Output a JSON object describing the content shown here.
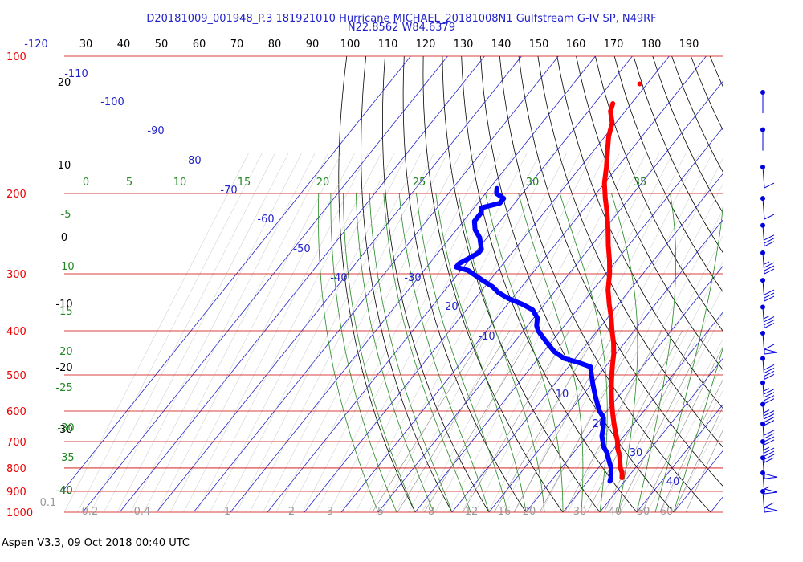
{
  "header": {
    "line1": "D20181009_001948_P.3 181921010 Hurricane MICHAEL_20181008N1 Gulfstream G-IV SP, N49RF",
    "line2": "N22.8562 W84.6379"
  },
  "footer": "Aspen V3.3, 09 Oct 2018  00:40 UTC",
  "chart_data": {
    "type": "line",
    "subtype": "skew-t log-p sounding",
    "title": "D20181009_001948_P.3 181921010 Hurricane MICHAEL_20181008N1 Gulfstream G-IV SP, N49RF",
    "subtitle": "N22.8562 W84.6379",
    "pressure_levels": [
      "100",
      "200",
      "300",
      "400",
      "500",
      "600",
      "700",
      "800",
      "900",
      "1000"
    ],
    "top_ticks": [
      "-120",
      "30",
      "40",
      "50",
      "60",
      "70",
      "80",
      "90",
      "100",
      "110",
      "120",
      "130",
      "140",
      "150",
      "160",
      "170",
      "180",
      "190"
    ],
    "isotherm_labels": [
      "-110",
      "-100",
      "-90",
      "-80",
      "-70",
      "-60",
      "-50",
      "-40",
      "-30",
      "-20",
      "-10",
      "10",
      "20",
      "30",
      "40"
    ],
    "left_scale_labels": [
      "20",
      "10",
      "0",
      "-10",
      "-20",
      "-30",
      "-40"
    ],
    "theta_e_labels": [
      "0",
      "5",
      "10",
      "15",
      "20",
      "25",
      "30",
      "35"
    ],
    "theta_e_left_labels": [
      "-5",
      "-10",
      "-15",
      "-20",
      "-25",
      "-30",
      "-35",
      "-40"
    ],
    "mixing_ratio_labels": [
      "0.1",
      "0.2",
      "0.4",
      "1",
      "2",
      "3",
      "5",
      "8",
      "12",
      "16",
      "20",
      "30",
      "40",
      "50",
      "60"
    ],
    "series": [
      {
        "color": "#ff0000",
        "p": [
          127,
          132,
          140,
          150,
          160,
          175,
          190,
          205,
          220,
          240,
          260,
          280,
          300,
          325,
          350,
          375,
          400,
          425,
          450,
          475,
          500,
          525,
          550,
          575,
          600,
          625,
          650,
          675,
          700,
          725,
          750,
          775,
          800,
          820,
          840
        ],
        "t": [
          -65,
          -64,
          -61,
          -59,
          -56.5,
          -53,
          -50,
          -46.5,
          -43,
          -39,
          -35.5,
          -32,
          -29,
          -26,
          -22.5,
          -19,
          -16,
          -13,
          -10.5,
          -8.5,
          -6.5,
          -4.5,
          -2.5,
          -0.5,
          1.5,
          3.5,
          5.5,
          7.5,
          9.5,
          11,
          13,
          14.5,
          16,
          17.5,
          18.5
        ]
      },
      {
        "color": "#0000ff",
        "p": [
          195,
          200,
          205,
          210,
          215,
          220,
          230,
          240,
          250,
          260,
          265,
          270,
          275,
          280,
          285,
          290,
          295,
          300,
          310,
          320,
          330,
          340,
          350,
          360,
          375,
          390,
          400,
          415,
          430,
          445,
          460,
          470,
          480,
          500,
          520,
          540,
          560,
          580,
          600,
          620,
          650,
          680,
          700,
          720,
          740,
          760,
          780,
          800,
          820,
          840,
          855
        ],
        "t": [
          -78,
          -77,
          -74,
          -74,
          -78,
          -77,
          -77,
          -75,
          -72,
          -70,
          -69,
          -69,
          -70,
          -71,
          -72,
          -72,
          -68,
          -66,
          -62,
          -58,
          -55,
          -51,
          -46,
          -42,
          -39,
          -37.5,
          -36,
          -33,
          -30,
          -27,
          -23,
          -18,
          -14,
          -12,
          -10,
          -8,
          -6,
          -4,
          -2,
          0.5,
          2.5,
          4,
          5.5,
          7,
          9,
          10.5,
          12,
          13.5,
          14.5,
          15.5,
          16
        ]
      }
    ],
    "wind_barbs": [
      {
        "p": 120,
        "speed_kt": 0
      },
      {
        "p": 145,
        "speed_kt": 0
      },
      {
        "p": 175,
        "speed_kt": 10
      },
      {
        "p": 205,
        "speed_kt": 10
      },
      {
        "p": 235,
        "speed_kt": 30
      },
      {
        "p": 270,
        "speed_kt": 35
      },
      {
        "p": 310,
        "speed_kt": 30
      },
      {
        "p": 355,
        "speed_kt": 35
      },
      {
        "p": 405,
        "speed_kt": 60
      },
      {
        "p": 460,
        "speed_kt": 40
      },
      {
        "p": 520,
        "speed_kt": 45
      },
      {
        "p": 580,
        "speed_kt": 45
      },
      {
        "p": 640,
        "speed_kt": 40
      },
      {
        "p": 700,
        "speed_kt": 45
      },
      {
        "p": 760,
        "speed_kt": 50
      },
      {
        "p": 820,
        "speed_kt": 55
      },
      {
        "p": 900,
        "speed_kt": 60
      }
    ],
    "grid": true
  }
}
